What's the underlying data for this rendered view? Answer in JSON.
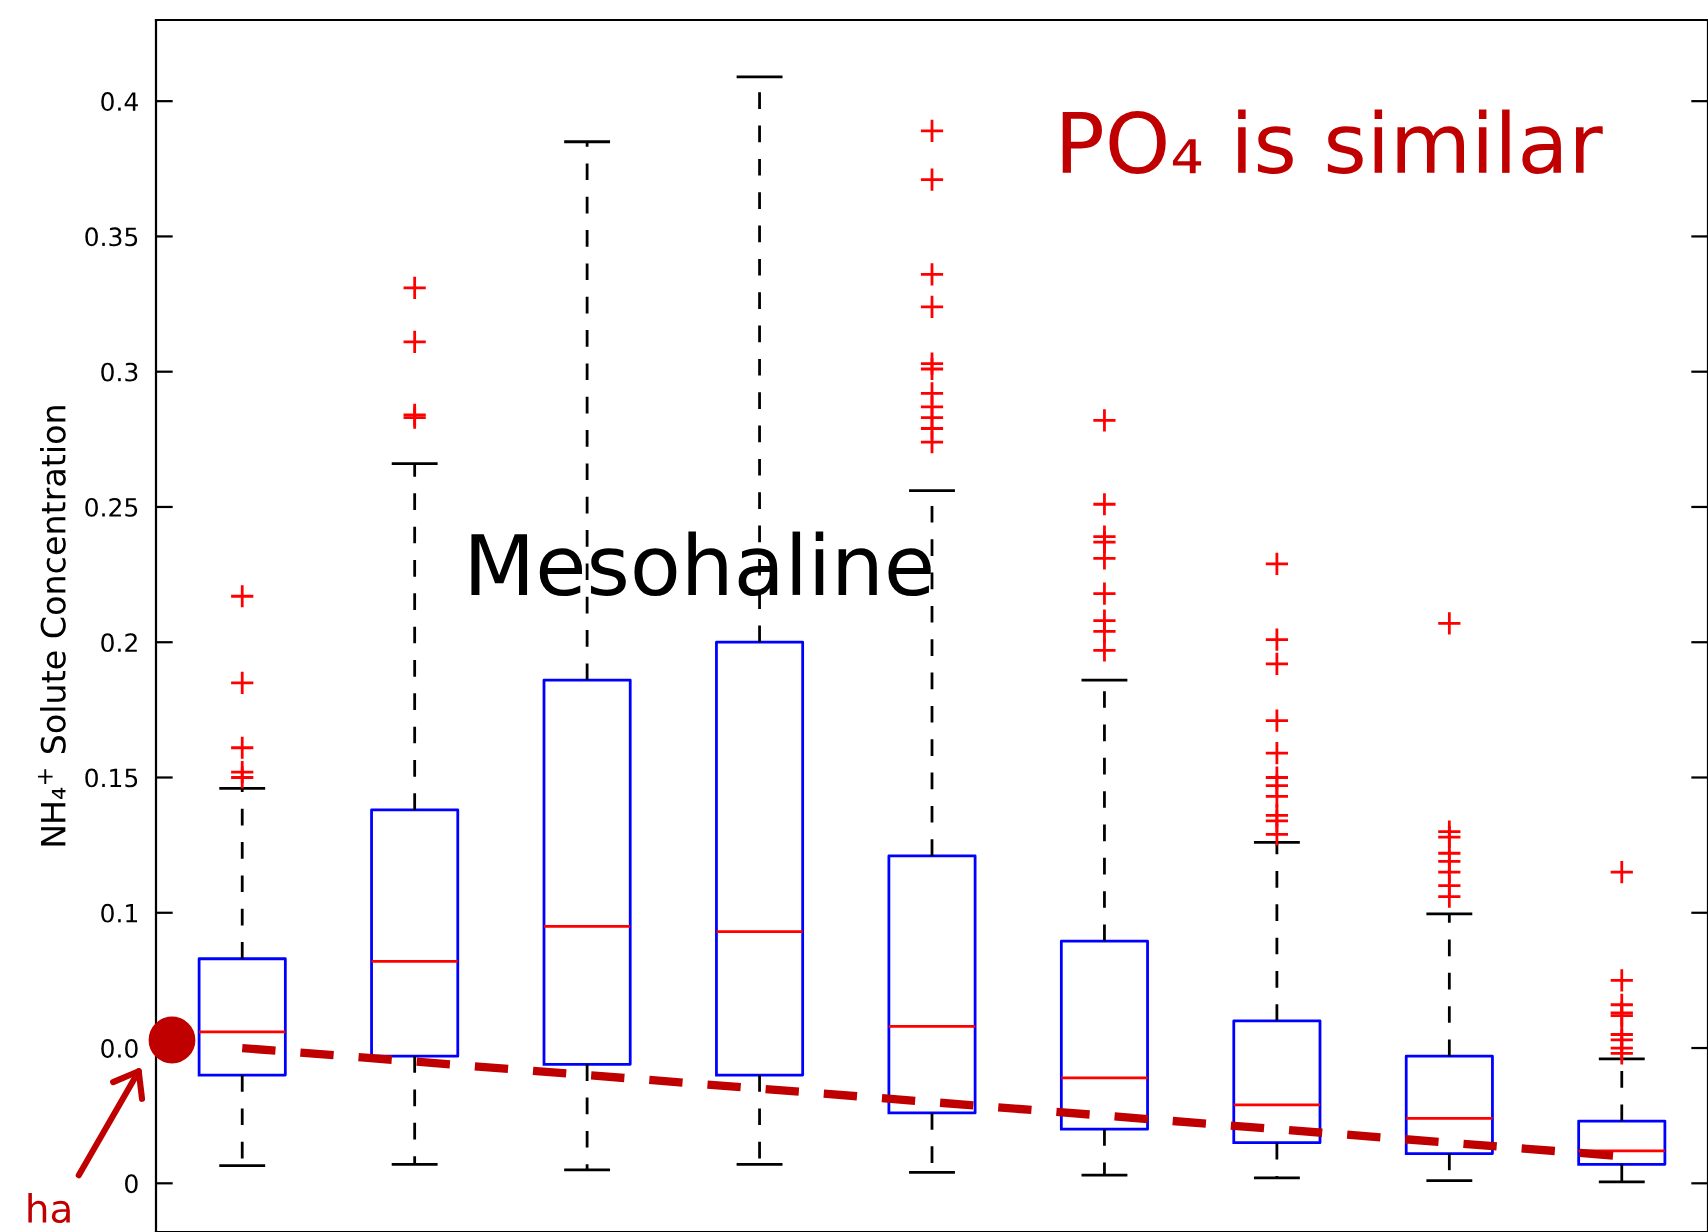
{
  "chart_data": {
    "type": "box",
    "ylabel": "NH₄$^{+}$ Solute Concentration",
    "categories": [
      null,
      null,
      null,
      null,
      null,
      null,
      null,
      null,
      null
    ],
    "color": "#0000ff",
    "boxes": [
      {
        "low": 0.0065,
        "q1": 0.04,
        "median": 0.056,
        "q3": 0.083,
        "high": 0.146,
        "outliers": [
          0.217,
          0.185,
          0.161,
          0.152,
          0.15
        ]
      },
      {
        "low": 0.007,
        "q1": 0.047,
        "median": 0.082,
        "q3": 0.138,
        "high": 0.266,
        "outliers": [
          0.331,
          0.311,
          0.284,
          0.283
        ]
      },
      {
        "low": 0.005,
        "q1": 0.044,
        "median": 0.095,
        "q3": 0.186,
        "high": 0.385
      },
      {
        "low": 0.007,
        "q1": 0.04,
        "median": 0.093,
        "q3": 0.2,
        "high": 0.409
      },
      {
        "low": 0.004,
        "q1": 0.026,
        "median": 0.058,
        "q3": 0.121,
        "high": 0.256,
        "outliers": [
          0.389,
          0.371,
          0.336,
          0.324,
          0.303,
          0.301,
          0.292,
          0.287,
          0.283,
          0.279,
          0.274
        ]
      },
      {
        "low": 0.003,
        "q1": 0.02,
        "median": 0.039,
        "q3": 0.0895,
        "high": 0.186,
        "outliers": [
          0.282,
          0.251,
          0.239,
          0.237,
          0.231,
          0.218,
          0.208,
          0.204,
          0.197
        ]
      },
      {
        "low": 0.002,
        "q1": 0.015,
        "median": 0.029,
        "q3": 0.06,
        "high": 0.126,
        "outliers": [
          0.229,
          0.201,
          0.192,
          0.171,
          0.159,
          0.15,
          0.147,
          0.143,
          0.136,
          0.134,
          0.129
        ]
      },
      {
        "low": 0.001,
        "q1": 0.011,
        "median": 0.024,
        "q3": 0.047,
        "high": 0.0996,
        "outliers": [
          0.207,
          0.13,
          0.128,
          0.122,
          0.119,
          0.115,
          0.11,
          0.106
        ]
      },
      {
        "low": 0.0005,
        "q1": 0.007,
        "median": 0.012,
        "q3": 0.023,
        "high": 0.046,
        "outliers": [
          0.115,
          0.075,
          0.066,
          0.063,
          0.062,
          0.055,
          0.053,
          0.05,
          0.048
        ]
      }
    ],
    "series": [
      {
        "type": "line",
        "values": [
          0.05,
          0.045,
          0.04,
          0.035,
          0.03,
          0.025,
          0.02,
          0.015,
          0.01
        ],
        "color": "#c00000",
        "line_style": "dashed"
      }
    ],
    "ylim": [
      -0.018,
      0.43
    ],
    "yticks": [
      0,
      {
        "value": 0.05,
        "label": "0.0"
      },
      0.1,
      0.15,
      0.2,
      0.25,
      0.3,
      0.35,
      0.4
    ],
    "tick_labels": "y",
    "grid": false,
    "annotations": [
      "Mesohaline",
      "PO₄ is similar",
      "ha"
    ]
  }
}
